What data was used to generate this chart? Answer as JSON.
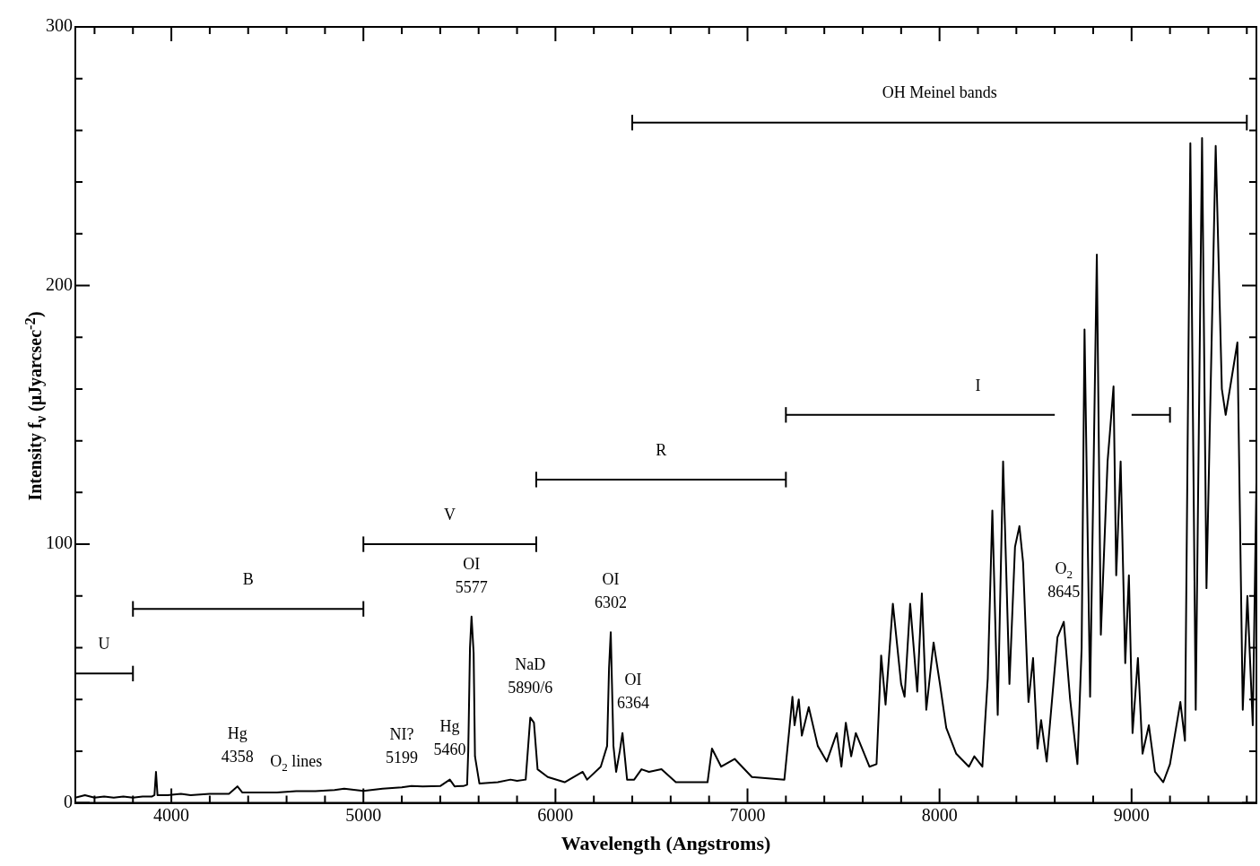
{
  "chart_data": {
    "type": "line",
    "xlabel": "Wavelength (Angstroms)",
    "ylabel": "Intensity f$_{ν}$ (μJyarcsec$^{-2}$)",
    "xlim": [
      3500,
      9650
    ],
    "ylim": [
      0,
      300
    ],
    "xticks": [
      {
        "value": 3600,
        "label": null
      },
      {
        "value": 3800,
        "label": null
      },
      4000,
      {
        "value": 4200,
        "label": null
      },
      {
        "value": 4400,
        "label": null
      },
      {
        "value": 4600,
        "label": null
      },
      {
        "value": 4800,
        "label": null
      },
      5000,
      {
        "value": 5200,
        "label": null
      },
      {
        "value": 5400,
        "label": null
      },
      {
        "value": 5600,
        "label": null
      },
      {
        "value": 5800,
        "label": null
      },
      6000,
      {
        "value": 6200,
        "label": null
      },
      {
        "value": 6400,
        "label": null
      },
      {
        "value": 6600,
        "label": null
      },
      {
        "value": 6800,
        "label": null
      },
      7000,
      {
        "value": 7200,
        "label": null
      },
      {
        "value": 7400,
        "label": null
      },
      {
        "value": 7600,
        "label": null
      },
      {
        "value": 7800,
        "label": null
      },
      8000,
      {
        "value": 8200,
        "label": null
      },
      {
        "value": 8400,
        "label": null
      },
      {
        "value": 8600,
        "label": null
      },
      {
        "value": 8800,
        "label": null
      },
      9000,
      {
        "value": 9200,
        "label": null
      },
      {
        "value": 9400,
        "label": null
      },
      {
        "value": 9600,
        "label": null
      }
    ],
    "yticks": [
      0,
      {
        "value": 20,
        "label": null
      },
      {
        "value": 40,
        "label": null
      },
      {
        "value": 60,
        "label": null
      },
      {
        "value": 80,
        "label": null
      },
      100,
      {
        "value": 120,
        "label": null
      },
      {
        "value": 140,
        "label": null
      },
      {
        "value": 160,
        "label": null
      },
      {
        "value": 180,
        "label": null
      },
      200,
      {
        "value": 220,
        "label": null
      },
      {
        "value": 240,
        "label": null
      },
      {
        "value": 260,
        "label": null
      },
      {
        "value": 280,
        "label": null
      },
      300
    ],
    "legend": false,
    "series": [
      {
        "type": "line",
        "color": "#000000",
        "x": [
          3500,
          3550,
          3600,
          3650,
          3700,
          3750,
          3800,
          3850,
          3900,
          3912,
          3920,
          3928,
          3980,
          4050,
          4100,
          4200,
          4300,
          4344,
          4370,
          4450,
          4550,
          4650,
          4750,
          4850,
          4900,
          5000,
          5100,
          5200,
          5250,
          5309,
          5400,
          5450,
          5475,
          5520,
          5540,
          5546,
          5555,
          5563,
          5574,
          5581,
          5604,
          5700,
          5766,
          5800,
          5845,
          5869,
          5888,
          5907,
          5960,
          6048,
          6142,
          6165,
          6236,
          6269,
          6279,
          6288,
          6302,
          6316,
          6335,
          6349,
          6373,
          6410,
          6448,
          6487,
          6552,
          6627,
          6792,
          6815,
          6863,
          6933,
          7023,
          7192,
          7216,
          7234,
          7245,
          7267,
          7283,
          7319,
          7366,
          7413,
          7465,
          7489,
          7512,
          7540,
          7564,
          7635,
          7672,
          7696,
          7719,
          7757,
          7800,
          7818,
          7847,
          7884,
          7908,
          7931,
          7969,
          8002,
          8035,
          8087,
          8153,
          8181,
          8223,
          8251,
          8275,
          8303,
          8331,
          8364,
          8393,
          8416,
          8435,
          8463,
          8487,
          8510,
          8529,
          8558,
          8614,
          8647,
          8680,
          8718,
          8740,
          8755,
          8784,
          8819,
          8840,
          8875,
          8887,
          8906,
          8920,
          8943,
          8967,
          8986,
          9005,
          9033,
          9057,
          9090,
          9122,
          9165,
          9200,
          9254,
          9278,
          9306,
          9334,
          9367,
          9390,
          9438,
          9470,
          9490,
          9551,
          9579,
          9603,
          9631,
          9650
        ],
        "values": [
          2,
          3,
          2,
          2.5,
          2,
          2.5,
          2,
          2.5,
          2.5,
          3,
          12,
          3,
          3,
          3.5,
          3,
          3.5,
          3.5,
          6.4,
          4,
          4,
          4,
          4.5,
          4.5,
          5,
          5.5,
          4.6,
          5.5,
          6,
          6.5,
          6.4,
          6.5,
          9,
          6.4,
          6.5,
          7,
          20,
          60,
          72,
          58,
          18,
          7.5,
          8,
          9,
          8.5,
          9,
          33,
          31,
          13,
          10,
          8,
          12,
          9,
          14,
          22,
          52,
          66,
          22,
          12,
          20,
          27,
          9,
          9,
          13,
          12,
          13,
          8,
          8,
          21,
          14,
          17,
          10,
          9,
          27,
          41,
          30,
          40,
          26,
          37,
          22,
          16,
          27,
          14,
          31,
          18,
          27,
          14,
          15,
          57,
          38,
          77,
          46,
          41,
          77,
          43,
          81,
          36,
          62,
          46,
          29,
          19,
          14,
          18,
          14,
          48,
          113,
          34,
          132,
          46,
          99,
          107,
          93,
          39,
          56,
          21,
          32,
          16,
          64,
          70,
          40,
          15,
          60,
          183,
          41,
          212,
          65,
          132,
          143,
          161,
          88,
          132,
          54,
          88,
          27,
          56,
          19,
          30,
          12,
          8,
          15,
          39,
          24,
          255,
          36,
          257,
          83,
          254,
          160,
          150,
          178,
          36,
          80,
          30,
          124
        ]
      },
      {
        "type": "line",
        "color": "#000000",
        "x": [
          3500,
          3800
        ],
        "values": [
          50,
          50
        ],
        "errors": [
          3,
          3
        ]
      },
      {
        "type": "line",
        "color": "#000000",
        "x": [
          3800,
          5000
        ],
        "values": [
          75,
          75
        ],
        "errors": [
          3,
          3
        ]
      },
      {
        "type": "line",
        "color": "#000000",
        "x": [
          5000,
          5900
        ],
        "values": [
          100,
          100
        ],
        "errors": [
          3,
          3
        ]
      },
      {
        "type": "line",
        "color": "#000000",
        "x": [
          5900,
          7200
        ],
        "values": [
          125,
          125
        ],
        "errors": [
          3,
          3
        ]
      },
      {
        "type": "line",
        "color": "#000000",
        "x": [
          7200,
          8600,
          8800,
          9000,
          9200
        ],
        "values": [
          150,
          150,
          null,
          150,
          150
        ],
        "errors": [
          3,
          null,
          null,
          null,
          3
        ]
      },
      {
        "type": "line",
        "color": "#000000",
        "x": [
          6400,
          9600
        ],
        "values": [
          263,
          263
        ],
        "errors": [
          3,
          3
        ]
      }
    ],
    "annotations": [
      {
        "text": "U",
        "x": 3650,
        "y": 50
      },
      {
        "text": "B",
        "x": 4400,
        "y": 75
      },
      {
        "text": "V",
        "x": 5450,
        "y": 100
      },
      {
        "text": "R",
        "x": 6550,
        "y": 125
      },
      {
        "text": "I",
        "x": 8200,
        "y": 150
      },
      {
        "text": "OH Meinel bands",
        "x": 8000,
        "y": 263
      },
      {
        "text": "Hg\n4358",
        "x": 4344,
        "y": 6.4
      },
      {
        "text": "O$_{2}$ lines",
        "x": 4650,
        "y": 4.5
      },
      {
        "text": "NI?\n5199",
        "x": 5200,
        "y": 6
      },
      {
        "text": "Hg\n5460",
        "x": 5450,
        "y": 9
      },
      {
        "text": "OI\n5577",
        "x": 5563,
        "y": 72
      },
      {
        "text": "NaD\n5890/6",
        "x": 5869,
        "y": 33
      },
      {
        "text": "OI\n6302",
        "x": 6288,
        "y": 66
      },
      {
        "text": "OI\n6364",
        "x": 6349,
        "y": 27
      },
      {
        "text": "O$_{2}$\n8645",
        "x": 8647,
        "y": 70
      }
    ]
  }
}
